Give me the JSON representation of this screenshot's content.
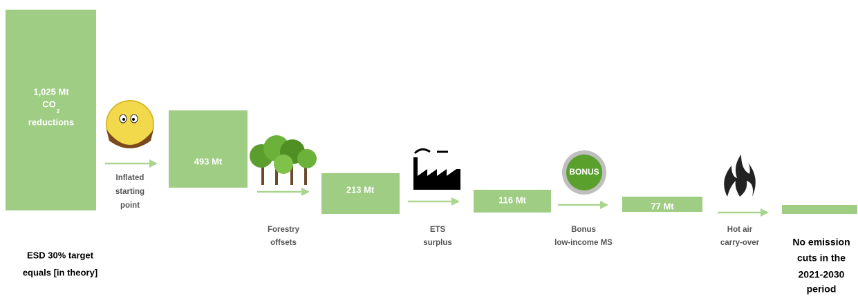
{
  "bars": [
    {
      "amount": "1,025 Mt",
      "gas": "CO",
      "gas_subscript": "2",
      "note": "reductions"
    },
    {
      "amount": "493 Mt"
    },
    {
      "amount": "213 Mt"
    },
    {
      "amount": "116 Mt"
    },
    {
      "amount": "77 Mt"
    }
  ],
  "steps": [
    {
      "label": [
        "Inflated",
        "starting",
        "point"
      ]
    },
    {
      "label": [
        "Forestry",
        "offsets"
      ]
    },
    {
      "label": [
        "ETS",
        "surplus"
      ]
    },
    {
      "label": [
        "Bonus",
        "low-income MS"
      ]
    },
    {
      "label": [
        "Hot air",
        "carry-over"
      ]
    }
  ],
  "bonus_badge": "BONUS",
  "start_caption": [
    "ESD 30% target",
    "equals [in theory]"
  ],
  "end_caption": [
    "No emission",
    "cuts in the",
    "2021-2030",
    "period"
  ]
}
